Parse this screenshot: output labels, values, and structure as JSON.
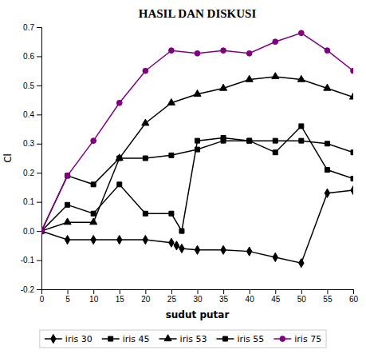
{
  "chart_data": {
    "type": "line",
    "title": "HASIL DAN DISKUSI",
    "xlabel": "sudut putar",
    "ylabel": "Cl",
    "xlim": [
      0,
      60
    ],
    "ylim": [
      -0.2,
      0.7
    ],
    "xticks": [
      0,
      5,
      10,
      15,
      20,
      25,
      30,
      35,
      40,
      45,
      50,
      55,
      60
    ],
    "yticks": [
      -0.2,
      -0.1,
      {
        "value": 0,
        "label": "0.0"
      },
      0.1,
      0.2,
      0.3,
      0.4,
      0.5,
      0.6,
      0.7
    ],
    "grid": false,
    "legend": "bottom",
    "series": [
      {
        "name": "iris 30",
        "color": "#000000",
        "marker": "diamond",
        "x": [
          0,
          5,
          10,
          15,
          20,
          25,
          26,
          27,
          30,
          35,
          40,
          45,
          50,
          55,
          60
        ],
        "values": [
          0.0,
          -0.03,
          -0.03,
          -0.03,
          -0.03,
          -0.04,
          -0.05,
          -0.06,
          -0.065,
          -0.065,
          -0.07,
          -0.09,
          -0.11,
          0.13,
          0.14
        ]
      },
      {
        "name": "iris 45",
        "color": "#000000",
        "marker": "square",
        "x": [
          0,
          5,
          10,
          15,
          20,
          25,
          27,
          30,
          35,
          40,
          45,
          50,
          55,
          60
        ],
        "values": [
          0.0,
          0.09,
          0.06,
          0.16,
          0.06,
          0.06,
          0.0,
          0.31,
          0.32,
          0.31,
          0.27,
          0.36,
          0.21,
          0.18
        ]
      },
      {
        "name": "iris 53",
        "color": "#000000",
        "marker": "triangle",
        "x": [
          0,
          5,
          10,
          15,
          20,
          25,
          30,
          35,
          40,
          45,
          50,
          55,
          60
        ],
        "values": [
          0.0,
          0.03,
          0.03,
          0.25,
          0.37,
          0.44,
          0.47,
          0.49,
          0.52,
          0.53,
          0.52,
          0.49,
          0.46
        ]
      },
      {
        "name": "iris 55",
        "color": "#000000",
        "marker": "square",
        "x": [
          0,
          5,
          10,
          15,
          20,
          25,
          30,
          35,
          40,
          45,
          50,
          55,
          60
        ],
        "values": [
          0.0,
          0.19,
          0.16,
          0.25,
          0.25,
          0.26,
          0.28,
          0.31,
          0.31,
          0.31,
          0.31,
          0.3,
          0.27
        ]
      },
      {
        "name": "iris 75",
        "color": "#800080",
        "marker": "circle",
        "x": [
          0,
          5,
          10,
          15,
          20,
          25,
          30,
          35,
          40,
          45,
          50,
          55,
          60
        ],
        "values": [
          0.0,
          0.19,
          0.31,
          0.44,
          0.55,
          0.62,
          0.61,
          0.62,
          0.61,
          0.65,
          0.68,
          0.62,
          0.55
        ]
      }
    ]
  }
}
